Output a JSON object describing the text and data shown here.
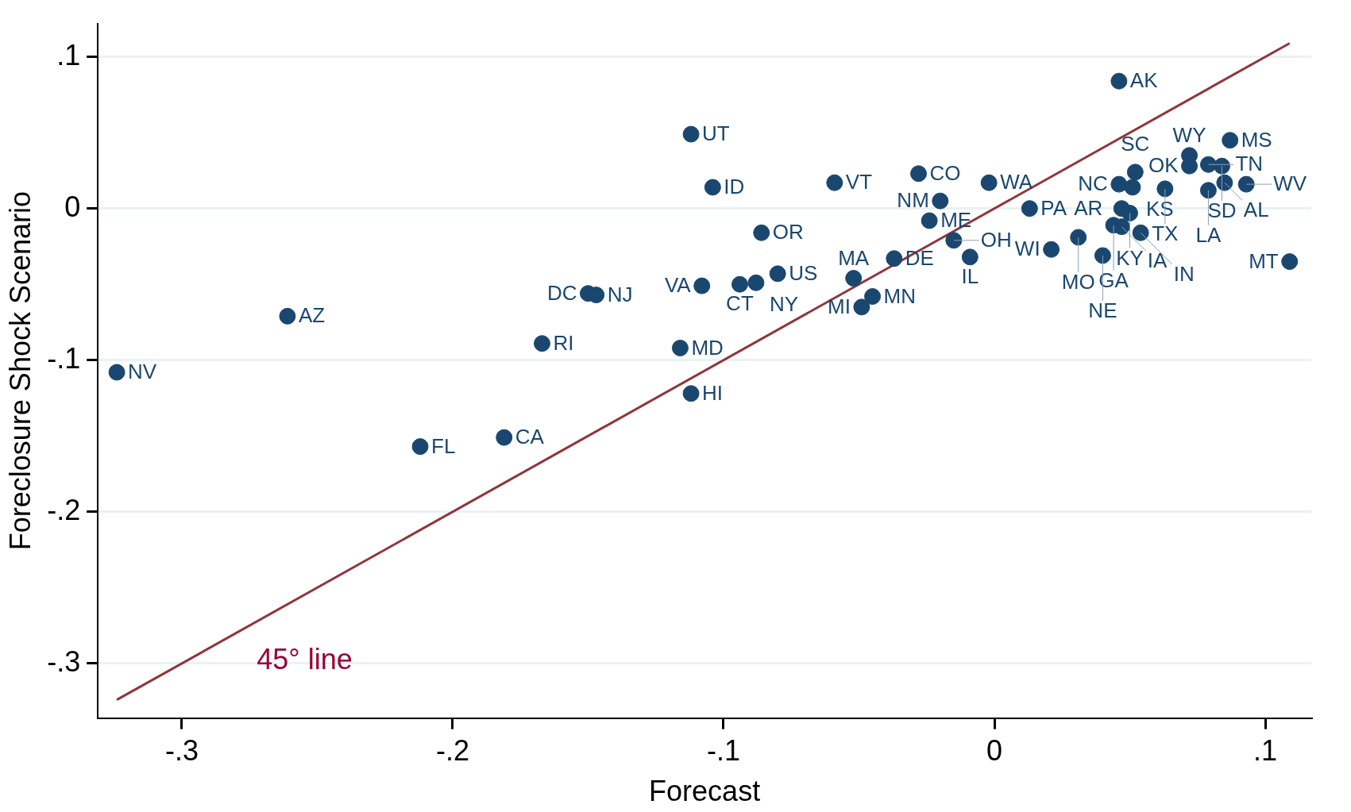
{
  "chart_data": {
    "type": "scatter",
    "xlabel": "Forecast",
    "ylabel": "Foreclosure Shock Scenario",
    "xlim": [
      -0.331,
      0.117
    ],
    "ylim": [
      -0.336,
      0.122
    ],
    "xticks": [
      {
        "value": -0.3,
        "label": "-.3"
      },
      {
        "value": -0.2,
        "label": "-.2"
      },
      {
        "value": -0.1,
        "label": "-.1"
      },
      0,
      {
        "value": 0.1,
        "label": ".1"
      }
    ],
    "yticks": [
      {
        "value": -0.3,
        "label": "-.3"
      },
      {
        "value": -0.2,
        "label": "-.2"
      },
      {
        "value": -0.1,
        "label": "-.1"
      },
      0,
      {
        "value": 0.1,
        "label": ".1"
      }
    ],
    "grid": "y",
    "legend": false,
    "series": [
      {
        "marker": "circle",
        "color": "#1a476f",
        "x": [
          -0.324,
          -0.261,
          -0.212,
          -0.181,
          -0.167,
          -0.15,
          -0.147,
          -0.116,
          -0.112,
          -0.112,
          -0.104,
          -0.108,
          -0.094,
          -0.088,
          -0.08,
          -0.086,
          -0.059,
          -0.052,
          -0.045,
          -0.049,
          -0.037,
          -0.028,
          -0.02,
          -0.024,
          -0.015,
          -0.009,
          -0.002,
          0.013,
          0.021,
          0.087,
          0.072,
          0.072,
          0.079,
          0.084,
          0.052,
          0.046,
          0.051,
          0.063,
          0.079,
          0.085,
          0.093,
          0.047,
          0.05,
          0.044,
          0.047,
          0.031,
          0.054,
          0.04,
          0.109,
          0.046
        ],
        "values": [
          -0.108,
          -0.071,
          -0.157,
          -0.151,
          -0.089,
          -0.056,
          -0.057,
          -0.092,
          -0.122,
          0.049,
          0.014,
          -0.051,
          -0.05,
          -0.049,
          -0.043,
          -0.016,
          0.017,
          -0.046,
          -0.058,
          -0.065,
          -0.033,
          0.023,
          0.005,
          -0.008,
          -0.021,
          -0.032,
          0.017,
          0,
          -0.027,
          0.045,
          0.035,
          0.028,
          0.029,
          0.028,
          0.024,
          0.016,
          0.014,
          0.013,
          0.012,
          0.017,
          0.016,
          0,
          -0.003,
          -0.011,
          -0.012,
          -0.019,
          -0.016,
          -0.031,
          -0.035,
          0.084
        ],
        "value_labels": [
          "NV",
          "AZ",
          "FL",
          "CA",
          "RI",
          "DC",
          "NJ",
          "MD",
          "HI",
          "UT",
          "ID",
          "VA",
          "CT",
          "NY",
          "US",
          "OR",
          "VT",
          "MA",
          "MN",
          "MI",
          "DE",
          "CO",
          "NM",
          "ME",
          "OH",
          "IL",
          "WA",
          "PA",
          "WI",
          "MS",
          "WY",
          "OK",
          "TN",
          "SD",
          "SC",
          "NC",
          "KS",
          "TX",
          "LA",
          "AL",
          "WV",
          "AR",
          "KY",
          "GA",
          "IA",
          "MO",
          "IN",
          "NE",
          "MT",
          "AK"
        ]
      },
      {
        "type": "line",
        "color": "#90353b",
        "line_style": "solid",
        "x": [
          -0.324,
          0.109
        ],
        "values": [
          -0.324,
          0.109
        ]
      }
    ],
    "annotations": [
      "45° line"
    ]
  }
}
